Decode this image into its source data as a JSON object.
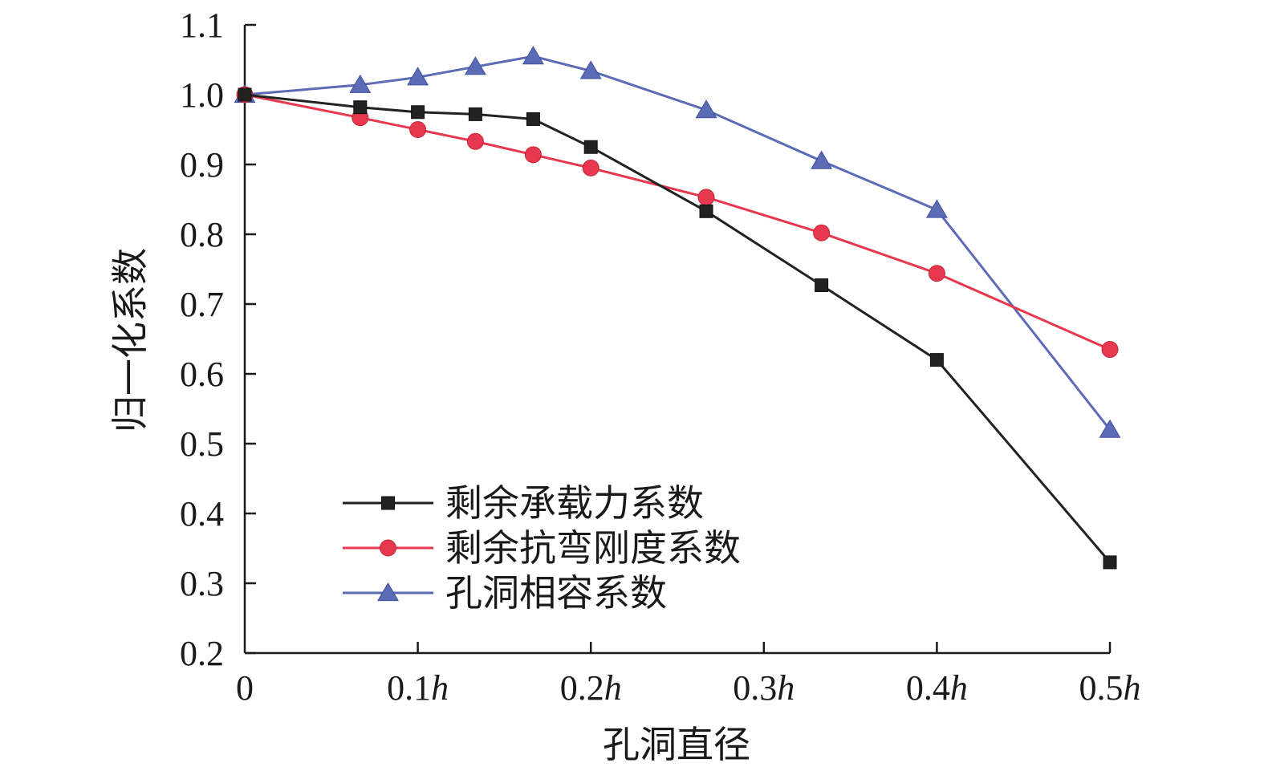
{
  "chart_data": {
    "type": "line",
    "title": "",
    "xlabel": "孔洞直径",
    "ylabel": "归一化系数",
    "xlim": [
      0,
      0.5
    ],
    "ylim": [
      0.2,
      1.1
    ],
    "yticks": [
      {
        "value": 0.2,
        "label": "0.2"
      },
      {
        "value": 0.3,
        "label": "0.3"
      },
      {
        "value": 0.4,
        "label": "0.4"
      },
      {
        "value": 0.5,
        "label": "0.5"
      },
      {
        "value": 0.6,
        "label": "0.6"
      },
      {
        "value": 0.7,
        "label": "0.7"
      },
      {
        "value": 0.8,
        "label": "0.8"
      },
      {
        "value": 0.9,
        "label": "0.9"
      },
      {
        "value": 1.0,
        "label": "1.0"
      },
      {
        "value": 1.1,
        "label": "1.1"
      }
    ],
    "xticks": [
      {
        "value": 0,
        "num": "0",
        "unit": ""
      },
      {
        "value": 0.1,
        "num": "0.1",
        "unit": "h"
      },
      {
        "value": 0.2,
        "num": "0.2",
        "unit": "h"
      },
      {
        "value": 0.3,
        "num": "0.3",
        "unit": "h"
      },
      {
        "value": 0.4,
        "num": "0.4",
        "unit": "h"
      },
      {
        "value": 0.5,
        "num": "0.5",
        "unit": "h"
      }
    ],
    "legend_position": "lower-left",
    "grid": false,
    "series": [
      {
        "name": "剩余承载力系数",
        "color": "#222222",
        "marker": "square",
        "x": [
          0,
          0.0667,
          0.1,
          0.1333,
          0.1667,
          0.2,
          0.2667,
          0.3333,
          0.4,
          0.5
        ],
        "y": [
          1.0,
          0.982,
          0.975,
          0.972,
          0.965,
          0.925,
          0.833,
          0.727,
          0.62,
          0.33
        ]
      },
      {
        "name": "剩余抗弯刚度系数",
        "color": "#e8384f",
        "marker": "circle",
        "x": [
          0,
          0.0667,
          0.1,
          0.1333,
          0.1667,
          0.2,
          0.2667,
          0.3333,
          0.4,
          0.5
        ],
        "y": [
          1.0,
          0.967,
          0.95,
          0.933,
          0.914,
          0.895,
          0.853,
          0.802,
          0.744,
          0.635
        ]
      },
      {
        "name": "孔洞相容系数",
        "color": "#5b6bb5",
        "marker": "triangle",
        "x": [
          0,
          0.0667,
          0.1,
          0.1333,
          0.1667,
          0.2,
          0.2667,
          0.3333,
          0.4,
          0.5
        ],
        "y": [
          1.0,
          1.014,
          1.025,
          1.04,
          1.055,
          1.034,
          0.978,
          0.905,
          0.835,
          0.52
        ]
      }
    ]
  }
}
